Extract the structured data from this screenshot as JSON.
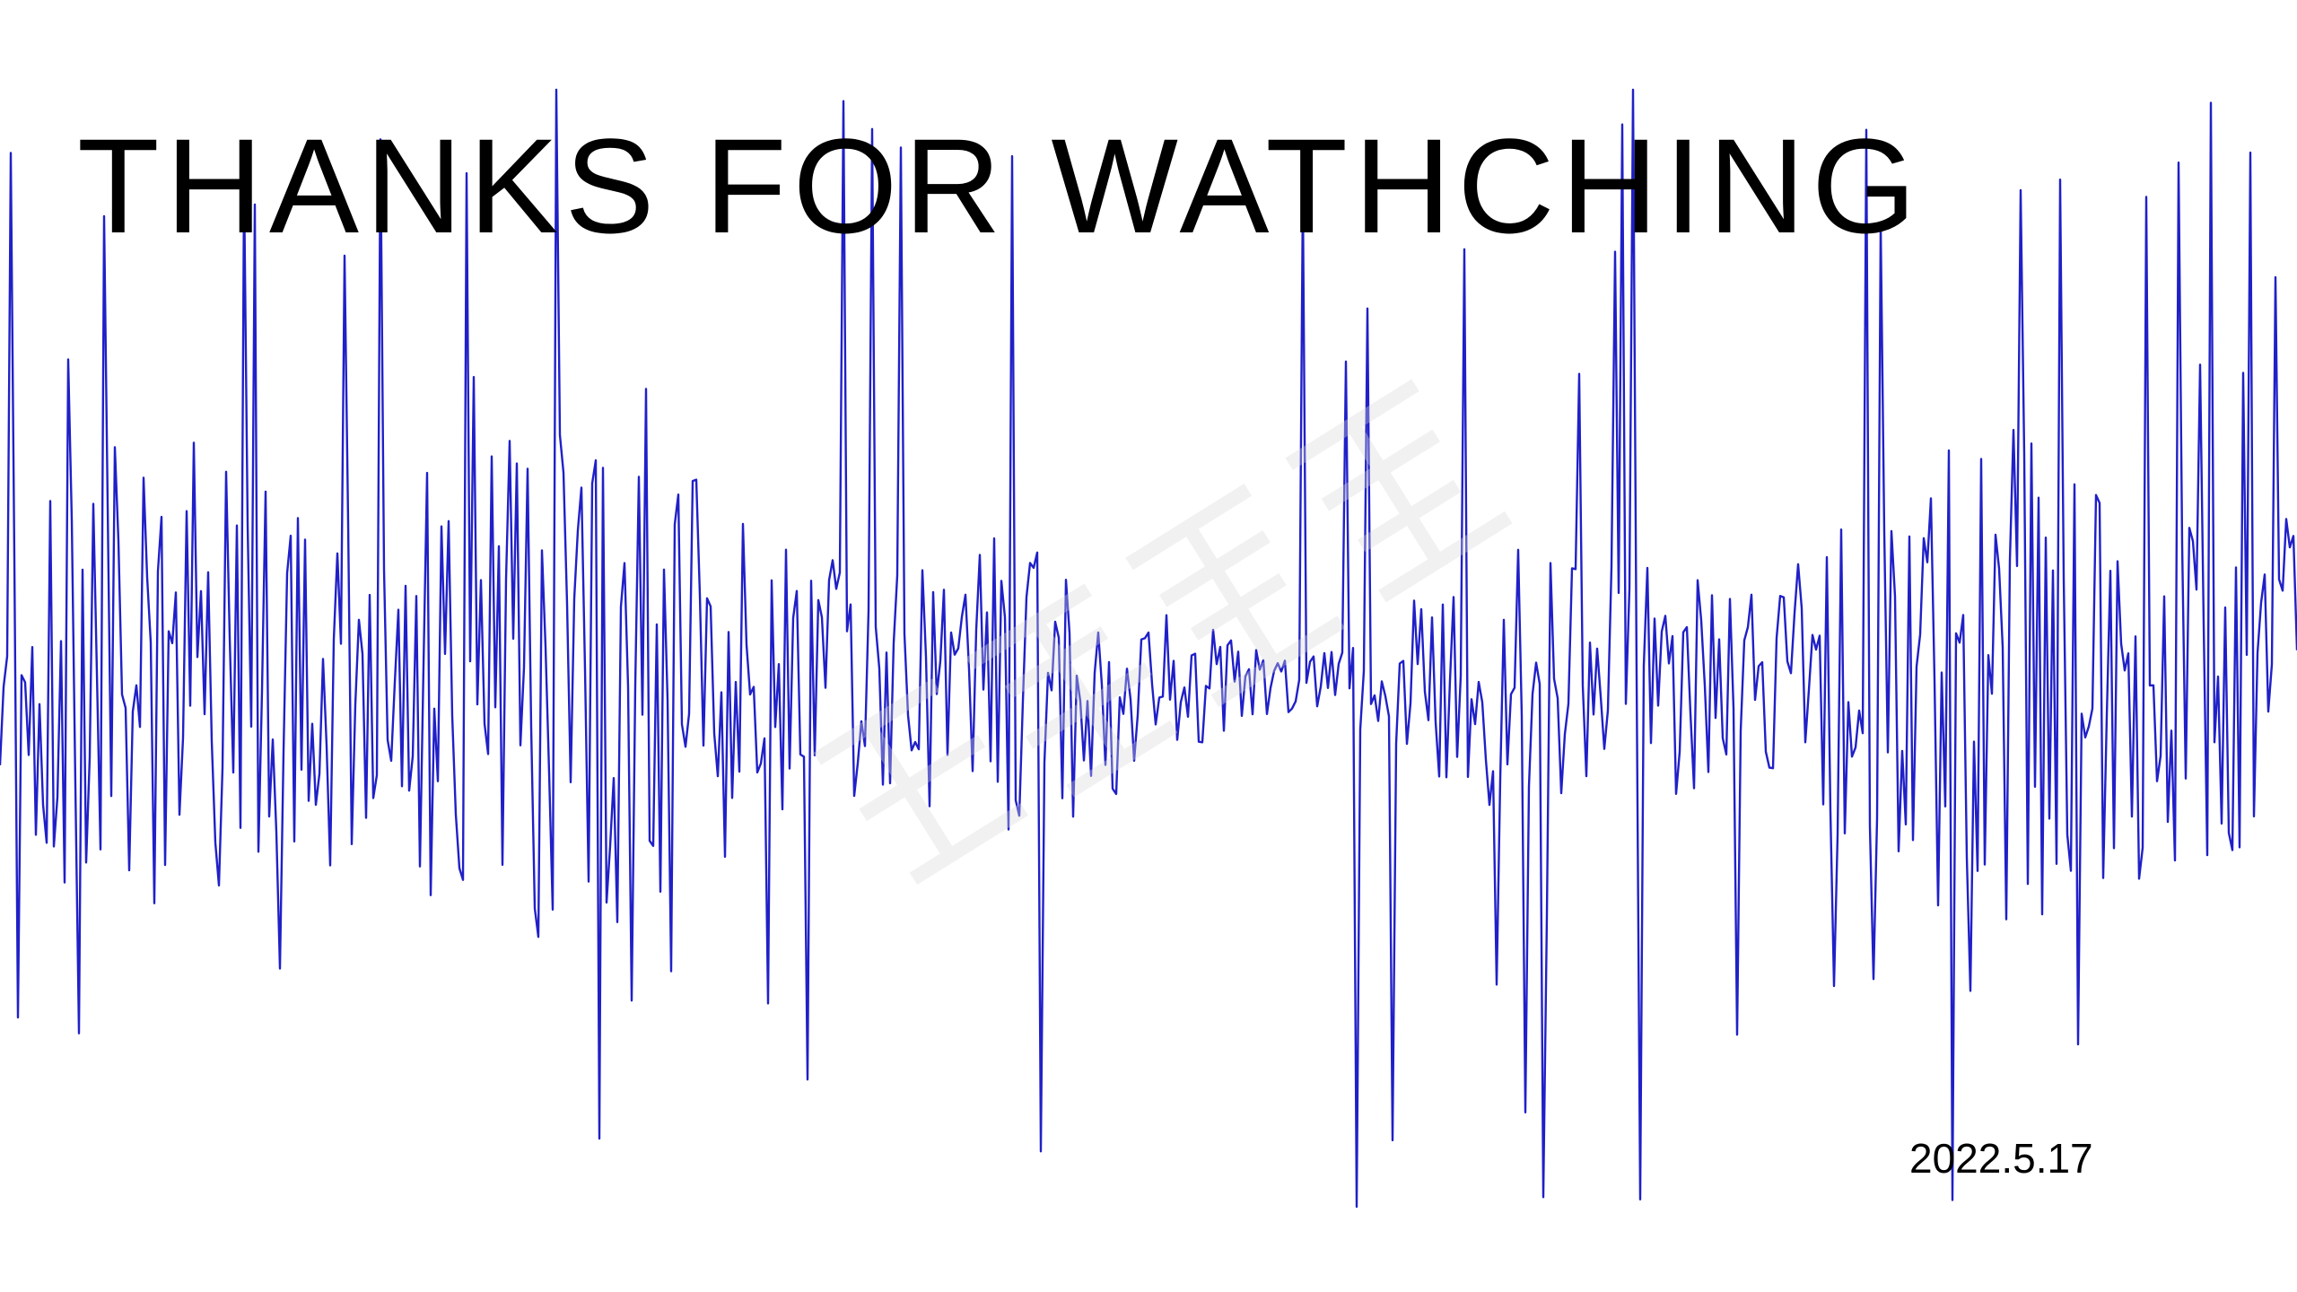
{
  "slide": {
    "title": "THANKS FOR WATHCHING",
    "date": "2022.5.17"
  },
  "colors": {
    "background": "#ffffff",
    "text": "#000000",
    "waveform": "#2020c8",
    "watermark": "#d9d9d9"
  },
  "icons": {
    "watermark": "faint-gray-watermark-logo"
  }
}
